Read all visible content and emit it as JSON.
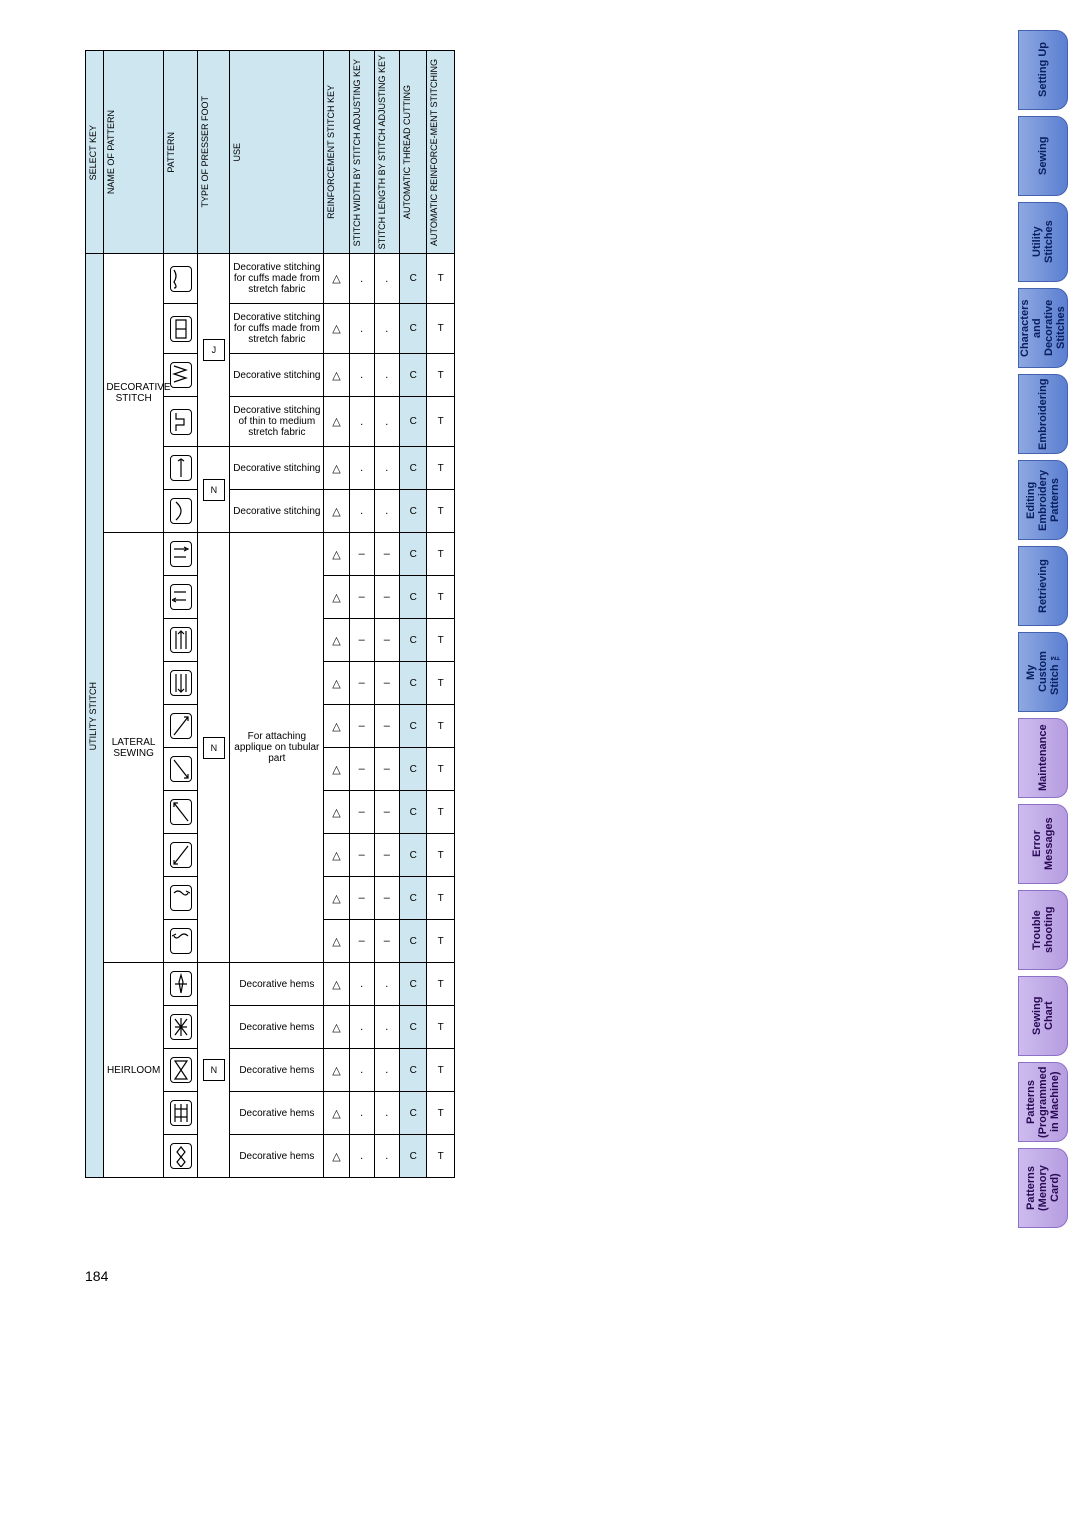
{
  "page_number": "184",
  "tabs": [
    {
      "label": "Setting Up",
      "color": "tab-blue"
    },
    {
      "label": "Sewing",
      "color": "tab-blue"
    },
    {
      "label": "Utility\nStitches",
      "color": "tab-blue"
    },
    {
      "label": "Characters\nand\nDecorative\nStitches",
      "color": "tab-blue"
    },
    {
      "label": "Embroidering",
      "color": "tab-blue"
    },
    {
      "label": "Editing\nEmbroidery\nPatterns",
      "color": "tab-blue"
    },
    {
      "label": "Retrieving",
      "color": "tab-blue"
    },
    {
      "label": "My\nCustom\nStitch ™",
      "color": "tab-blue"
    },
    {
      "label": "Maintenance",
      "color": "tab-purple"
    },
    {
      "label": "Error\nMessages",
      "color": "tab-purple"
    },
    {
      "label": "Trouble\nshooting",
      "color": "tab-purple"
    },
    {
      "label": "Sewing\nChart",
      "color": "tab-purple"
    },
    {
      "label": "Patterns\n(Programmed\nin Machine)",
      "color": "tab-purple"
    },
    {
      "label": "Patterns\n(Memory\nCard)",
      "color": "tab-purple"
    }
  ],
  "headers": {
    "select_key": "SELECT KEY",
    "name_of_pattern": "NAME OF PATTERN",
    "pattern": "PATTERN",
    "type_foot": "TYPE OF PRESSER FOOT",
    "use": "USE",
    "reinf": "REINFORCEMENT STITCH KEY",
    "width": "STITCH WIDTH BY STITCH ADJUSTING KEY",
    "length": "STITCH LENGTH BY STITCH ADJUSTING KEY",
    "auto_cut": "AUTOMATIC THREAD CUTTING",
    "auto_rm": "AUTOMATIC REINFORCE-MENT STITCHING"
  },
  "select_key_label": "UTILITY STITCH",
  "groups": [
    {
      "name": "DECORATIVE\nSTITCH",
      "foot_groups": [
        {
          "icon": "J",
          "rows": [
            {
              "pat": "wave",
              "use": "Decorative stitching for cuffs made from stretch fabric",
              "r": "tri",
              "w": "dot",
              "l": "dot",
              "c": "C",
              "rm": "T"
            },
            {
              "pat": "box",
              "use": "Decorative stitching for cuffs made from stretch fabric",
              "r": "tri",
              "w": "dot",
              "l": "dot",
              "c": "C",
              "rm": "T"
            },
            {
              "pat": "zz",
              "use": "Decorative stitching",
              "r": "tri",
              "w": "dot",
              "l": "dot",
              "c": "C",
              "rm": "T"
            },
            {
              "pat": "step",
              "use": "Decorative stitching of thin to medium stretch fabric",
              "r": "tri",
              "w": "dot",
              "l": "dot",
              "c": "C",
              "rm": "T"
            }
          ]
        },
        {
          "icon": "N",
          "rows": [
            {
              "pat": "updn",
              "use": "Decorative stitching",
              "r": "tri",
              "w": "dot",
              "l": "dot",
              "c": "C",
              "rm": "T"
            },
            {
              "pat": "curve",
              "use": "Decorative stitching",
              "r": "tri",
              "w": "dot",
              "l": "dot",
              "c": "C",
              "rm": "T"
            }
          ]
        }
      ]
    },
    {
      "name": "LATERAL\nSEWING",
      "foot_groups": [
        {
          "icon": "N",
          "rows": [
            {
              "pat": "dashR",
              "use": "",
              "r": "tri",
              "w": "dash",
              "l": "dash",
              "c": "C",
              "rm": "T"
            },
            {
              "pat": "dashL",
              "use": "",
              "r": "tri",
              "w": "dash",
              "l": "dash",
              "c": "C",
              "rm": "T"
            },
            {
              "pat": "lineU",
              "use": "",
              "r": "tri",
              "w": "dash",
              "l": "dash",
              "c": "C",
              "rm": "T"
            },
            {
              "pat": "lineD",
              "use": "",
              "r": "tri",
              "w": "dash",
              "l": "dash",
              "c": "C",
              "rm": "T"
            },
            {
              "pat": "diag1",
              "use": "For attaching applique on tubular part",
              "r": "tri",
              "w": "dash",
              "l": "dash",
              "c": "C",
              "rm": "T"
            },
            {
              "pat": "diag2",
              "use": "",
              "r": "tri",
              "w": "dash",
              "l": "dash",
              "c": "C",
              "rm": "T"
            },
            {
              "pat": "diag3",
              "use": "",
              "r": "tri",
              "w": "dash",
              "l": "dash",
              "c": "C",
              "rm": "T"
            },
            {
              "pat": "diag4",
              "use": "",
              "r": "tri",
              "w": "dash",
              "l": "dash",
              "c": "C",
              "rm": "T"
            },
            {
              "pat": "zzR",
              "use": "",
              "r": "tri",
              "w": "dash",
              "l": "dash",
              "c": "C",
              "rm": "T"
            },
            {
              "pat": "zzL",
              "use": "",
              "r": "tri",
              "w": "dash",
              "l": "dash",
              "c": "C",
              "rm": "T"
            }
          ],
          "shared_use": "For attaching applique on tubular part"
        }
      ]
    },
    {
      "name": "HEIRLOOM",
      "foot_groups": [
        {
          "icon": "N",
          "rows": [
            {
              "pat": "star",
              "use": "Decorative hems",
              "r": "tri",
              "w": "dot",
              "l": "dot",
              "c": "C",
              "rm": "T"
            },
            {
              "pat": "cross",
              "use": "Decorative hems",
              "r": "tri",
              "w": "dot",
              "l": "dot",
              "c": "C",
              "rm": "T"
            },
            {
              "pat": "hglass",
              "use": "Decorative hems",
              "r": "tri",
              "w": "dot",
              "l": "dot",
              "c": "C",
              "rm": "T"
            },
            {
              "pat": "fence",
              "use": "Decorative hems",
              "r": "tri",
              "w": "dot",
              "l": "dot",
              "c": "C",
              "rm": "T"
            },
            {
              "pat": "chain",
              "use": "Decorative hems",
              "r": "tri",
              "w": "dot",
              "l": "dot",
              "c": "C",
              "rm": "T"
            }
          ]
        }
      ]
    }
  ]
}
